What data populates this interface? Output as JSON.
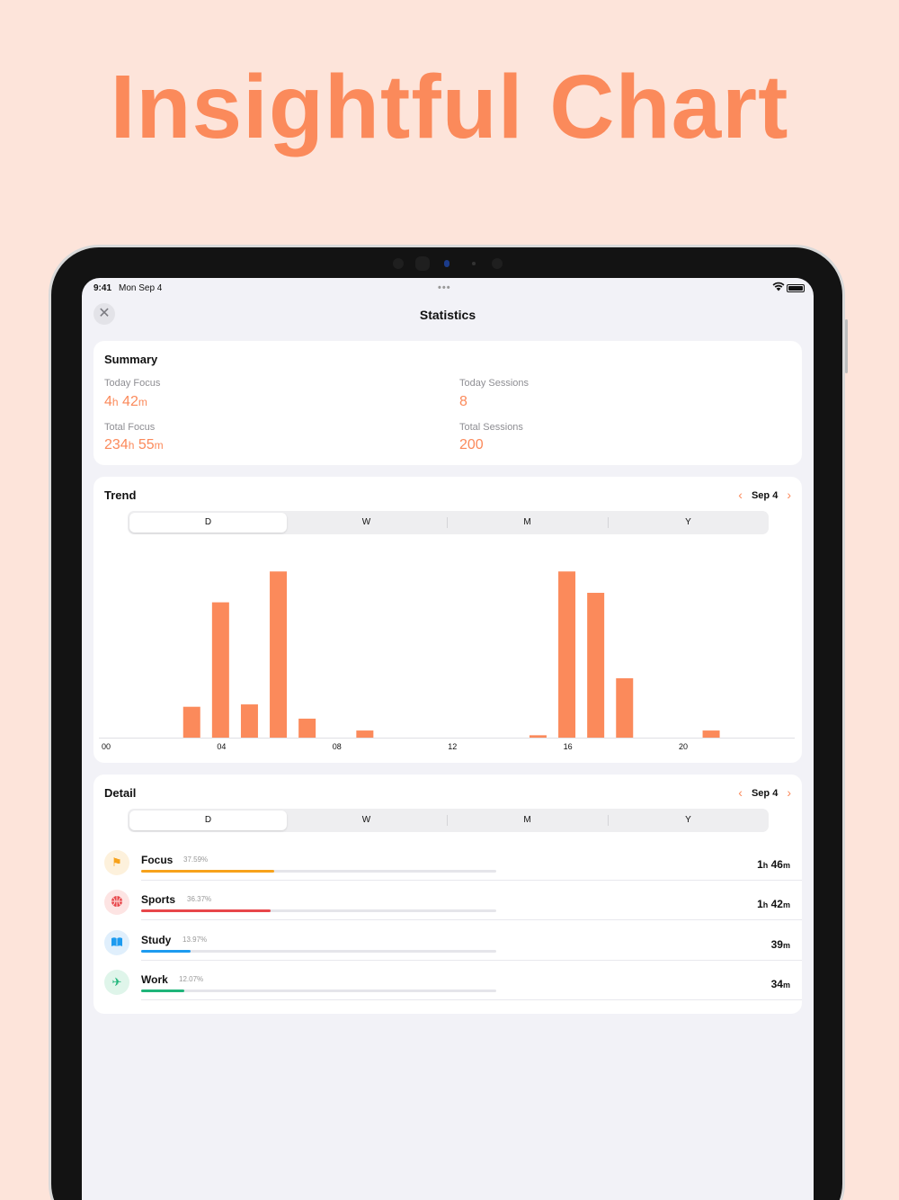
{
  "headline": "Insightful Chart",
  "status_bar": {
    "time": "9:41",
    "date": "Mon Sep 4",
    "dots": "•••"
  },
  "nav": {
    "title": "Statistics",
    "close_icon": "close-icon"
  },
  "summary": {
    "title": "Summary",
    "today_focus": {
      "label": "Today Focus",
      "h": "4",
      "h_unit": "h",
      "m": "42",
      "m_unit": "m"
    },
    "today_sessions": {
      "label": "Today Sessions",
      "value": "8"
    },
    "total_focus": {
      "label": "Total Focus",
      "h": "234",
      "h_unit": "h",
      "m": "55",
      "m_unit": "m"
    },
    "total_sessions": {
      "label": "Total Sessions",
      "value": "200"
    }
  },
  "trend": {
    "title": "Trend",
    "date_label": "Sep 4",
    "segments": [
      "D",
      "W",
      "M",
      "Y"
    ],
    "active_segment": 0
  },
  "chart_data": {
    "type": "bar",
    "x": [
      0,
      1,
      2,
      3,
      4,
      5,
      6,
      7,
      8,
      9,
      10,
      11,
      12,
      13,
      14,
      15,
      16,
      17,
      18,
      19,
      20,
      21,
      22,
      23
    ],
    "values": [
      0,
      0,
      13,
      57,
      14,
      70,
      8,
      0,
      3,
      0,
      0,
      0,
      0,
      0,
      1,
      70,
      61,
      25,
      0,
      0,
      3,
      0,
      0,
      0
    ],
    "tick_labels": [
      "00",
      "04",
      "08",
      "12",
      "16",
      "20"
    ],
    "tick_positions": [
      0,
      4,
      8,
      12,
      16,
      20
    ],
    "ylim": [
      0,
      72
    ],
    "color": "#fb8a5b",
    "title": "",
    "xlabel": "",
    "ylabel": ""
  },
  "detail": {
    "title": "Detail",
    "date_label": "Sep 4",
    "segments": [
      "D",
      "W",
      "M",
      "Y"
    ],
    "active_segment": 0,
    "items": [
      {
        "name": "Focus",
        "percent_label": "37.59%",
        "fraction": 0.3759,
        "h": "1",
        "h_unit": "h",
        "m": "46",
        "m_unit": "m",
        "color": "#f7a21b",
        "icon_bg": "#fdf1dc",
        "icon": "flag-icon",
        "glyph": "⚑"
      },
      {
        "name": "Sports",
        "percent_label": "36.37%",
        "fraction": 0.3637,
        "h": "1",
        "h_unit": "h",
        "m": "42",
        "m_unit": "m",
        "color": "#e8464a",
        "icon_bg": "#fde4e3",
        "icon": "basketball-icon",
        "glyph": "●"
      },
      {
        "name": "Study",
        "percent_label": "13.97%",
        "fraction": 0.1397,
        "h": "",
        "h_unit": "",
        "m": "39",
        "m_unit": "m",
        "color": "#1d9bf0",
        "icon_bg": "#e0effc",
        "icon": "book-icon",
        "glyph": "▮▮"
      },
      {
        "name": "Work",
        "percent_label": "12.07%",
        "fraction": 0.1207,
        "h": "",
        "h_unit": "",
        "m": "34",
        "m_unit": "m",
        "color": "#1fb57a",
        "icon_bg": "#dff5ea",
        "icon": "airplane-icon",
        "glyph": "✈"
      }
    ]
  }
}
